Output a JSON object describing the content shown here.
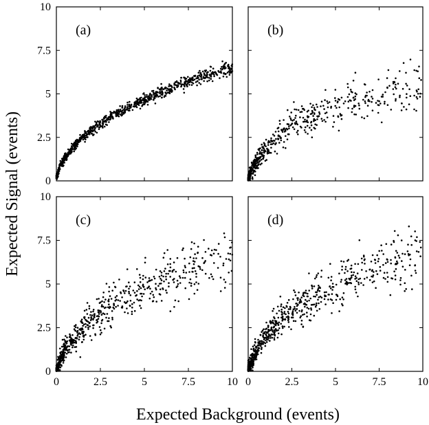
{
  "figure": {
    "xlabel": "Expected Background (events)",
    "ylabel": "Expected Signal (events)"
  },
  "chart_data": [
    {
      "type": "scatter",
      "panel_label": "(a)",
      "xlim": [
        0,
        10
      ],
      "ylim": [
        0,
        10
      ],
      "xticks": [
        "0",
        "2.5",
        "5",
        "7.5",
        "10"
      ],
      "yticks": [
        "0",
        "2.5",
        "5",
        "7.5",
        "10"
      ],
      "marker_color": "#000000",
      "note": "~900 points along a dense concave band (y ≈ 2.1·√x); the band is described by anchor points",
      "band": {
        "x": [
          0.0,
          0.2,
          0.5,
          1.0,
          1.5,
          2.0,
          3.0,
          4.0,
          5.0,
          6.0,
          7.0,
          8.0,
          9.0,
          10.0
        ],
        "y": [
          0.2,
          0.8,
          1.4,
          2.0,
          2.5,
          2.9,
          3.6,
          4.2,
          4.7,
          5.1,
          5.5,
          5.9,
          6.2,
          6.5
        ],
        "spread": 0.45,
        "n_points": 900
      }
    },
    {
      "type": "scatter",
      "panel_label": "(b)",
      "xlim": [
        0,
        10
      ],
      "ylim": [
        0,
        10
      ],
      "xticks": [
        "0",
        "2.5",
        "5",
        "7.5",
        "10"
      ],
      "yticks": [
        "0",
        "2.5",
        "5",
        "7.5",
        "10"
      ],
      "marker_color": "#000000",
      "note": "~600 points concentrated below x=3, sparser cloud beyond",
      "band": {
        "x": [
          0.0,
          0.2,
          0.5,
          1.0,
          1.5,
          2.0,
          3.0,
          4.0,
          5.0,
          6.0,
          7.0,
          8.0,
          9.0,
          10.0
        ],
        "y": [
          0.1,
          0.7,
          1.3,
          2.0,
          2.5,
          3.0,
          3.6,
          4.0,
          4.4,
          4.8,
          5.0,
          5.3,
          5.5,
          5.7
        ],
        "spread": 0.8,
        "n_points": 600
      }
    },
    {
      "type": "scatter",
      "panel_label": "(c)",
      "xlim": [
        0,
        10
      ],
      "ylim": [
        0,
        10
      ],
      "xticks": [
        "0",
        "2.5",
        "5",
        "7.5",
        "10"
      ],
      "yticks": [
        "0",
        "2.5",
        "5",
        "7.5",
        "10"
      ],
      "marker_color": "#000000",
      "note": "~700 points, wide scatter, a few outliers up to x≈9.8",
      "band": {
        "x": [
          0.0,
          0.2,
          0.5,
          1.0,
          1.5,
          2.0,
          3.0,
          4.0,
          5.0,
          6.0,
          7.0,
          8.0,
          9.0,
          10.0
        ],
        "y": [
          0.1,
          0.7,
          1.4,
          2.1,
          2.7,
          3.2,
          3.9,
          4.5,
          5.0,
          5.5,
          5.9,
          6.2,
          6.6,
          6.9
        ],
        "spread": 1.0,
        "n_points": 700
      }
    },
    {
      "type": "scatter",
      "panel_label": "(d)",
      "xlim": [
        0,
        10
      ],
      "ylim": [
        0,
        10
      ],
      "xticks": [
        "0",
        "2.5",
        "5",
        "7.5",
        "10"
      ],
      "yticks": [
        "0",
        "2.5",
        "5",
        "7.5",
        "10"
      ],
      "marker_color": "#000000",
      "note": "~750 points, wide scatter extending to x≈9.7",
      "band": {
        "x": [
          0.0,
          0.2,
          0.5,
          1.0,
          1.5,
          2.0,
          3.0,
          4.0,
          5.0,
          6.0,
          7.0,
          8.0,
          9.0,
          10.0
        ],
        "y": [
          0.1,
          0.7,
          1.4,
          2.2,
          2.8,
          3.3,
          4.0,
          4.6,
          5.1,
          5.6,
          6.0,
          6.4,
          6.8,
          7.2
        ],
        "spread": 1.0,
        "n_points": 750
      }
    }
  ]
}
